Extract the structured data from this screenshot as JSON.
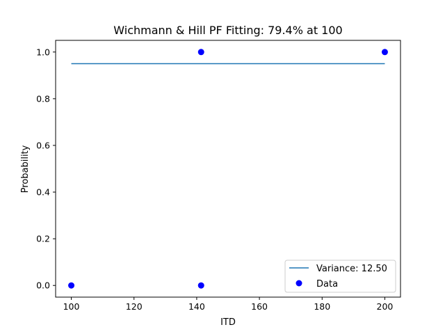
{
  "chart_data": {
    "type": "scatter",
    "title": "Wichmann & Hill PF Fitting: 79.4% at 100",
    "xlabel": "ITD",
    "ylabel": "Probability",
    "xlim": [
      95,
      205
    ],
    "ylim": [
      -0.05,
      1.05
    ],
    "x_ticks": [
      100,
      120,
      140,
      160,
      180,
      200
    ],
    "y_ticks": [
      0.0,
      0.2,
      0.4,
      0.6,
      0.8,
      1.0
    ],
    "x_tick_labels": [
      "100",
      "120",
      "140",
      "160",
      "180",
      "200"
    ],
    "y_tick_labels": [
      "0.0",
      "0.2",
      "0.4",
      "0.6",
      "0.8",
      "1.0"
    ],
    "grid": false,
    "legend_position": "lower right",
    "series": [
      {
        "name": "Variance: 12.50",
        "kind": "line",
        "color": "#1f77b4",
        "x": [
          100,
          200
        ],
        "y": [
          0.95,
          0.95
        ]
      },
      {
        "name": "Data",
        "kind": "scatter",
        "color": "#0000ff",
        "x": [
          100,
          141.4,
          141.4,
          200
        ],
        "y": [
          0.0,
          0.0,
          1.0,
          1.0
        ]
      }
    ]
  }
}
